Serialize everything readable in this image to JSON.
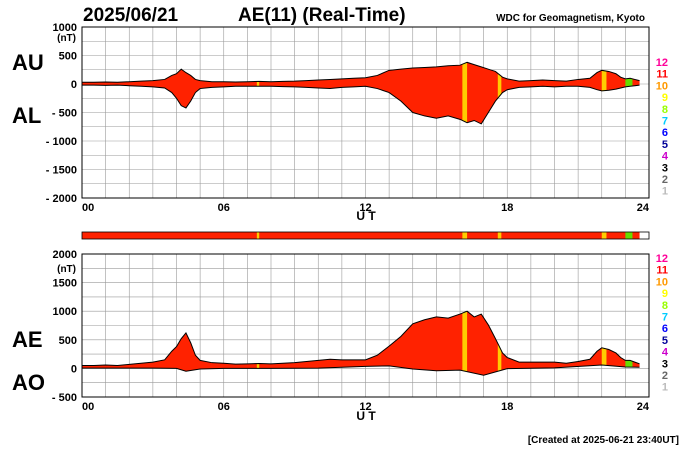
{
  "header": {
    "date": "2025/06/21",
    "title": "AE(11) (Real-Time)",
    "source": "WDC for Geomagnetism, Kyoto"
  },
  "footer": {
    "created": "[Created at 2025-06-21 23:40UT]"
  },
  "colors": {
    "fill": "#ff2200",
    "yellow": "#ffcc00",
    "green": "#66dd00",
    "grid": "#9a9a9a"
  },
  "levels": {
    "labels": [
      "12",
      "11",
      "10",
      "9",
      "8",
      "7",
      "6",
      "5",
      "4",
      "3",
      "2",
      "1"
    ],
    "colors": [
      "#ff0099",
      "#ff0000",
      "#ff9900",
      "#ffff00",
      "#99ff00",
      "#00ccff",
      "#0000ff",
      "#000099",
      "#cc00cc",
      "#000000",
      "#666666",
      "#bbbbbb"
    ]
  },
  "chart_data": [
    {
      "type": "area",
      "panel": "top",
      "xlabel": "U T",
      "ylabel_lines": [
        "AU",
        "AL"
      ],
      "unit": "(nT)",
      "xlim": [
        0,
        24
      ],
      "ylim": [
        -2000,
        1000
      ],
      "x_tick_labels": [
        "00",
        "06",
        "12",
        "18",
        "24"
      ],
      "y_tick_labels": [
        "1000",
        "500",
        "0",
        "- 500",
        "- 1000",
        "- 1500",
        "- 2000"
      ],
      "grid": true,
      "series": [
        {
          "name": "AU",
          "x": [
            0,
            0.5,
            1,
            1.5,
            2,
            2.5,
            3,
            3.5,
            3.8,
            4,
            4.2,
            4.4,
            4.6,
            4.8,
            5,
            5.5,
            6,
            6.5,
            7,
            7.5,
            8,
            8.5,
            9,
            9.5,
            10,
            10.5,
            11,
            11.5,
            12,
            12.5,
            13,
            13.5,
            14,
            14.5,
            15,
            15.5,
            16,
            16.3,
            16.6,
            16.9,
            17.2,
            17.5,
            17.8,
            18,
            18.5,
            19,
            19.5,
            20,
            20.5,
            21,
            21.5,
            21.8,
            22,
            22.3,
            22.6,
            22.8,
            23,
            23.2,
            23.4,
            23.6
          ],
          "values": [
            30,
            30,
            35,
            30,
            40,
            50,
            60,
            80,
            150,
            180,
            260,
            200,
            150,
            80,
            60,
            40,
            40,
            35,
            40,
            45,
            40,
            45,
            50,
            60,
            70,
            80,
            90,
            100,
            110,
            150,
            240,
            260,
            280,
            290,
            300,
            320,
            330,
            380,
            340,
            300,
            260,
            220,
            120,
            90,
            50,
            60,
            70,
            60,
            50,
            80,
            100,
            200,
            240,
            220,
            180,
            120,
            90,
            100,
            80,
            60
          ]
        },
        {
          "name": "AL",
          "x": [
            0,
            0.5,
            1,
            1.5,
            2,
            2.5,
            3,
            3.5,
            3.8,
            4,
            4.2,
            4.4,
            4.6,
            4.8,
            5,
            5.5,
            6,
            6.5,
            7,
            7.5,
            8,
            8.5,
            9,
            9.5,
            10,
            10.5,
            11,
            11.5,
            12,
            12.5,
            13,
            13.5,
            14,
            14.5,
            15,
            15.5,
            16,
            16.3,
            16.6,
            16.9,
            17.2,
            17.5,
            17.8,
            18,
            18.5,
            19,
            19.5,
            20,
            20.5,
            21,
            21.5,
            21.8,
            22,
            22.3,
            22.6,
            22.8,
            23,
            23.2,
            23.4,
            23.6
          ],
          "values": [
            -20,
            -20,
            -25,
            -20,
            -30,
            -40,
            -50,
            -70,
            -150,
            -250,
            -380,
            -420,
            -300,
            -150,
            -80,
            -60,
            -50,
            -40,
            -40,
            -40,
            -40,
            -45,
            -50,
            -60,
            -70,
            -80,
            -60,
            -50,
            -40,
            -80,
            -150,
            -300,
            -500,
            -560,
            -600,
            -560,
            -620,
            -680,
            -640,
            -700,
            -500,
            -300,
            -150,
            -100,
            -60,
            -50,
            -40,
            -50,
            -40,
            -40,
            -60,
            -100,
            -120,
            -110,
            -90,
            -70,
            -50,
            -40,
            -30,
            -20
          ]
        }
      ]
    },
    {
      "type": "area",
      "panel": "bottom",
      "xlabel": "U T",
      "ylabel_lines": [
        "AE",
        "AO"
      ],
      "unit": "(nT)",
      "xlim": [
        0,
        24
      ],
      "ylim": [
        -500,
        2000
      ],
      "x_tick_labels": [
        "00",
        "06",
        "12",
        "18",
        "24"
      ],
      "y_tick_labels": [
        "2000",
        "1500",
        "1000",
        "500",
        "0",
        "- 500"
      ],
      "grid": true,
      "series": [
        {
          "name": "AE",
          "x": [
            0,
            0.5,
            1,
            1.5,
            2,
            2.5,
            3,
            3.5,
            3.8,
            4,
            4.2,
            4.4,
            4.6,
            4.8,
            5,
            5.5,
            6,
            6.5,
            7,
            7.5,
            8,
            8.5,
            9,
            9.5,
            10,
            10.5,
            11,
            11.5,
            12,
            12.5,
            13,
            13.5,
            14,
            14.5,
            15,
            15.5,
            16,
            16.3,
            16.6,
            16.9,
            17.2,
            17.5,
            17.8,
            18,
            18.5,
            19,
            19.5,
            20,
            20.5,
            21,
            21.5,
            21.8,
            22,
            22.3,
            22.6,
            22.8,
            23,
            23.2,
            23.4,
            23.6
          ],
          "values": [
            50,
            50,
            60,
            50,
            70,
            90,
            110,
            150,
            300,
            380,
            520,
            620,
            450,
            230,
            140,
            100,
            90,
            75,
            80,
            85,
            80,
            90,
            100,
            120,
            140,
            160,
            150,
            150,
            150,
            230,
            390,
            560,
            780,
            850,
            900,
            880,
            950,
            1000,
            900,
            950,
            760,
            520,
            270,
            190,
            110,
            110,
            110,
            110,
            90,
            120,
            160,
            300,
            360,
            330,
            270,
            190,
            140,
            140,
            110,
            80
          ]
        },
        {
          "name": "AO",
          "x": [
            0,
            1,
            2,
            3,
            4,
            4.4,
            5,
            6,
            8,
            10,
            12,
            13,
            14,
            15,
            16,
            17,
            18,
            20,
            22,
            23,
            23.6
          ],
          "values": [
            5,
            5,
            5,
            5,
            0,
            -50,
            -10,
            0,
            0,
            5,
            35,
            45,
            -10,
            -40,
            -30,
            -120,
            -5,
            10,
            60,
            25,
            20
          ]
        }
      ]
    }
  ]
}
